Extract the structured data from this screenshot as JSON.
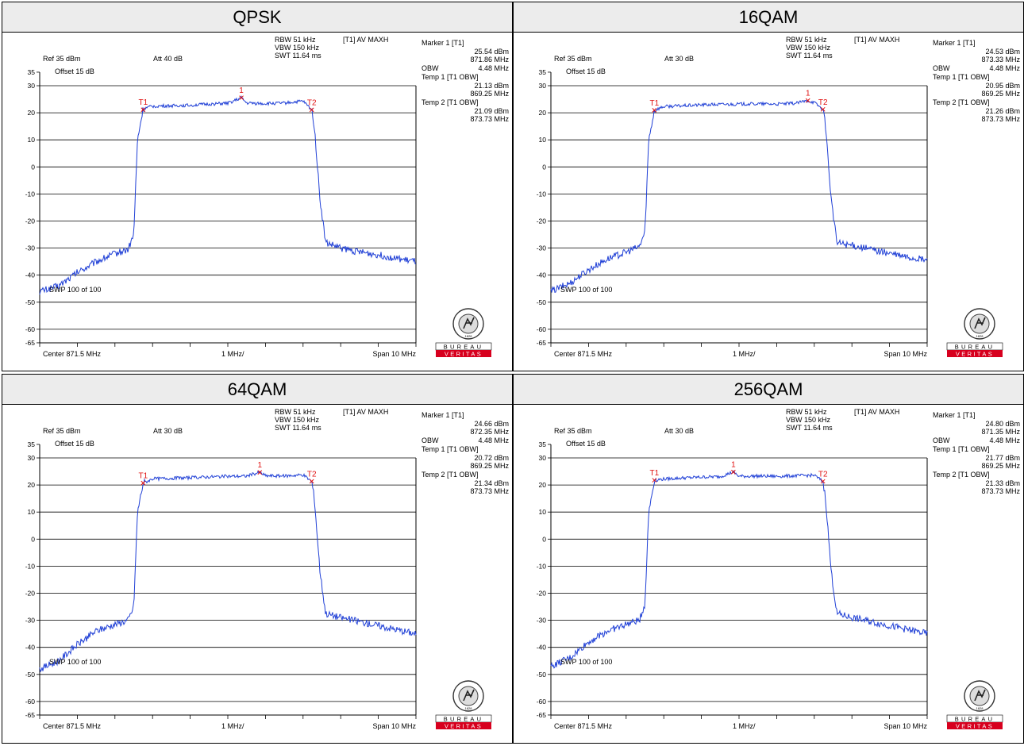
{
  "common": {
    "rbw": "RBW 51 kHz",
    "vbw": "VBW 150 kHz",
    "swt": "SWT 11.64 ms",
    "trace_mode": "[T1] AV MAXH",
    "ref": "Ref 35 dBm",
    "offset": "Offset 15 dB",
    "sweep": "SWP 100 of 100",
    "center": "Center 871.5 MHz",
    "per_div": "1 MHz/",
    "span": "Span 10 MHz",
    "marker1_title": "Marker 1 [T1]",
    "obw_label": "OBW",
    "temp1_title": "Temp 1 [T1 OBW]",
    "temp2_title": "Temp 2 [T1 OBW]",
    "y_ticks": [
      "35",
      "30",
      "20",
      "10",
      "0",
      "-10",
      "-20",
      "-30",
      "-40",
      "-50",
      "-60",
      "-65"
    ],
    "logo_top": "BUREAU",
    "logo_bottom": "VERITAS",
    "seal_year": "1828",
    "colors": {
      "trace": "#1f3fd6",
      "marker": "#e01010",
      "logo_red": "#d7001e",
      "grid": "#000000"
    }
  },
  "panels": [
    {
      "title": "QPSK",
      "att": "Att  40 dB",
      "marker1_level": "25.54 dBm",
      "marker1_freq": "871.86 MHz",
      "obw_value": "4.48 MHz",
      "temp1_level": "21.13 dBm",
      "temp1_freq": "869.25 MHz",
      "temp2_level": "21.09 dBm",
      "temp2_freq": "873.73 MHz",
      "m1_label": "1",
      "t1_label": "T1",
      "t2_label": "T2"
    },
    {
      "title": "16QAM",
      "att": "Att  30 dB",
      "marker1_level": "24.53 dBm",
      "marker1_freq": "873.33 MHz",
      "obw_value": "4.48 MHz",
      "temp1_level": "20.95 dBm",
      "temp1_freq": "869.25 MHz",
      "temp2_level": "21.26 dBm",
      "temp2_freq": "873.73 MHz",
      "m1_label": "1",
      "t1_label": "T1",
      "t2_label": "T2"
    },
    {
      "title": "64QAM",
      "att": "Att  30 dB",
      "marker1_level": "24.66 dBm",
      "marker1_freq": "872.35 MHz",
      "obw_value": "4.48 MHz",
      "temp1_level": "20.72 dBm",
      "temp1_freq": "869.25 MHz",
      "temp2_level": "21.34 dBm",
      "temp2_freq": "873.73 MHz",
      "m1_label": "1",
      "t1_label": "T1",
      "t2_label": "T2"
    },
    {
      "title": "256QAM",
      "att": "Att  30 dB",
      "marker1_level": "24.80 dBm",
      "marker1_freq": "871.35 MHz",
      "obw_value": "4.48 MHz",
      "temp1_level": "21.77 dBm",
      "temp1_freq": "869.25 MHz",
      "temp2_level": "21.33 dBm",
      "temp2_freq": "873.73 MHz",
      "m1_label": "1",
      "t1_label": "T1",
      "t2_label": "T2"
    }
  ],
  "chart_data": [
    {
      "type": "line",
      "title": "QPSK",
      "xlim": [
        866.5,
        876.5
      ],
      "ylim": [
        -65,
        35
      ],
      "series": [
        {
          "x": [
            866.5,
            867.0,
            867.5,
            868.0,
            868.5,
            868.85,
            869.0,
            869.1,
            869.25,
            869.5,
            870.0,
            870.5,
            871.0,
            871.5,
            871.86,
            872.0,
            872.5,
            873.0,
            873.5,
            873.73,
            873.8,
            873.95,
            874.1,
            874.5,
            875.0,
            875.5,
            876.0,
            876.5
          ],
          "y": [
            -46,
            -44,
            -39,
            -35,
            -32,
            -30.5,
            -25,
            10,
            21.5,
            22.4,
            22.6,
            22.8,
            23.2,
            23.5,
            25.5,
            23.6,
            23.4,
            23.6,
            24.3,
            21.1,
            15,
            -12,
            -28,
            -30,
            -31.5,
            -32.5,
            -34,
            -35
          ]
        }
      ],
      "markers": [
        {
          "name": "T1",
          "x": 869.25,
          "y": 21.13
        },
        {
          "name": "1",
          "x": 871.86,
          "y": 25.54
        },
        {
          "name": "T2",
          "x": 873.73,
          "y": 21.09
        }
      ]
    },
    {
      "type": "line",
      "title": "16QAM",
      "xlim": [
        866.5,
        876.5
      ],
      "ylim": [
        -65,
        35
      ],
      "series": [
        {
          "x": [
            866.5,
            867.0,
            867.5,
            868.0,
            868.5,
            868.85,
            869.0,
            869.1,
            869.25,
            869.5,
            870.0,
            870.5,
            871.0,
            871.5,
            872.0,
            872.5,
            873.0,
            873.33,
            873.5,
            873.73,
            873.8,
            873.95,
            874.1,
            874.5,
            875.0,
            875.5,
            876.0,
            876.5
          ],
          "y": [
            -46,
            -43,
            -38,
            -34,
            -31.5,
            -29.5,
            -24,
            10,
            21,
            22.3,
            22.6,
            22.9,
            23.1,
            23.2,
            23.3,
            23.2,
            23.5,
            24.5,
            23.8,
            21.3,
            15,
            -12,
            -28,
            -29,
            -30.5,
            -32,
            -33.5,
            -34.5
          ]
        }
      ],
      "markers": [
        {
          "name": "T1",
          "x": 869.25,
          "y": 20.95
        },
        {
          "name": "1",
          "x": 873.33,
          "y": 24.53
        },
        {
          "name": "T2",
          "x": 873.73,
          "y": 21.26
        }
      ]
    },
    {
      "type": "line",
      "title": "64QAM",
      "xlim": [
        866.5,
        876.5
      ],
      "ylim": [
        -65,
        35
      ],
      "series": [
        {
          "x": [
            866.5,
            867.0,
            867.5,
            868.0,
            868.5,
            868.85,
            869.0,
            869.1,
            869.25,
            869.5,
            870.0,
            870.5,
            871.0,
            871.5,
            872.0,
            872.35,
            872.5,
            873.0,
            873.5,
            873.73,
            873.8,
            873.95,
            874.1,
            874.5,
            875.0,
            875.5,
            876.0,
            876.5
          ],
          "y": [
            -48,
            -45,
            -39,
            -34,
            -31.5,
            -30,
            -25,
            10,
            20.7,
            22.3,
            22.5,
            22.7,
            23.0,
            23.2,
            23.3,
            24.7,
            23.4,
            23.3,
            23.8,
            21.3,
            15,
            -12,
            -27.5,
            -29,
            -30.5,
            -32,
            -33.5,
            -35
          ]
        }
      ],
      "markers": [
        {
          "name": "T1",
          "x": 869.25,
          "y": 20.72
        },
        {
          "name": "1",
          "x": 872.35,
          "y": 24.66
        },
        {
          "name": "T2",
          "x": 873.73,
          "y": 21.34
        }
      ]
    },
    {
      "type": "line",
      "title": "256QAM",
      "xlim": [
        866.5,
        876.5
      ],
      "ylim": [
        -65,
        35
      ],
      "series": [
        {
          "x": [
            866.5,
            867.0,
            867.5,
            868.0,
            868.5,
            868.85,
            869.0,
            869.1,
            869.25,
            869.5,
            870.0,
            870.5,
            871.0,
            871.35,
            871.5,
            872.0,
            872.5,
            873.0,
            873.5,
            873.73,
            873.8,
            873.95,
            874.1,
            874.5,
            875.0,
            875.5,
            876.0,
            876.5
          ],
          "y": [
            -47,
            -44,
            -38,
            -34,
            -31.5,
            -30,
            -24,
            10,
            21.8,
            22.2,
            22.6,
            22.9,
            23.1,
            24.8,
            23.2,
            23.3,
            23.2,
            23.4,
            23.6,
            21.3,
            15,
            -12,
            -27.5,
            -29,
            -30.5,
            -32,
            -33.5,
            -35
          ]
        }
      ],
      "markers": [
        {
          "name": "T1",
          "x": 869.25,
          "y": 21.77
        },
        {
          "name": "1",
          "x": 871.35,
          "y": 24.8
        },
        {
          "name": "T2",
          "x": 873.73,
          "y": 21.33
        }
      ]
    }
  ]
}
